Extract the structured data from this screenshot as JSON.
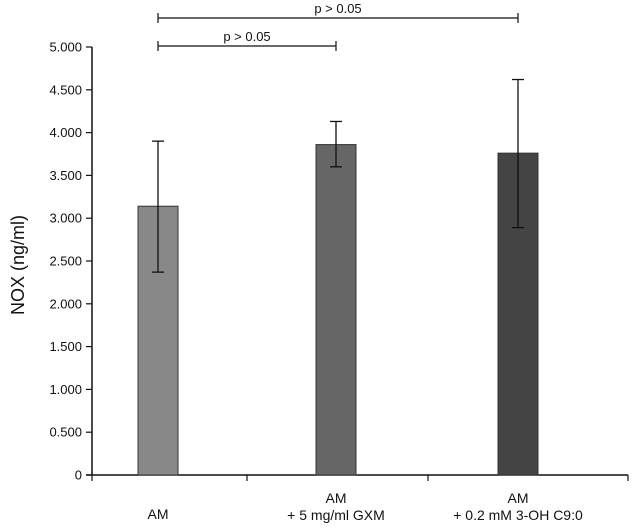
{
  "chart_data": {
    "type": "bar",
    "title": "",
    "xlabel": "",
    "ylabel": "NOX (ng/ml)",
    "ylim": [
      0,
      5000
    ],
    "yticks": [
      {
        "value": 0,
        "label": "0"
      },
      {
        "value": 500,
        "label": "0.500"
      },
      {
        "value": 1000,
        "label": "1.000"
      },
      {
        "value": 1500,
        "label": "1.500"
      },
      {
        "value": 2000,
        "label": "2.000"
      },
      {
        "value": 2500,
        "label": "2.500"
      },
      {
        "value": 3000,
        "label": "3.000"
      },
      {
        "value": 3500,
        "label": "3.500"
      },
      {
        "value": 4000,
        "label": "4.000"
      },
      {
        "value": 4500,
        "label": "4.500"
      },
      {
        "value": 5000,
        "label": "5.000"
      }
    ],
    "categories": [
      [
        "AM"
      ],
      [
        "AM",
        "+ 5 mg/ml GXM"
      ],
      [
        "AM",
        "+ 0.2 mM 3-OH C9:0"
      ]
    ],
    "values": [
      3140,
      3860,
      3760
    ],
    "error_low": [
      2370,
      3600,
      2890
    ],
    "error_high": [
      3900,
      4130,
      4620
    ],
    "bar_colors": [
      "#888888",
      "#666666",
      "#444444"
    ],
    "grid": false,
    "legend": null,
    "significance": [
      {
        "from": 0,
        "to": 1,
        "label": "p > 0.05",
        "level": 1
      },
      {
        "from": 0,
        "to": 2,
        "label": "p > 0.05",
        "level": 2
      }
    ]
  }
}
